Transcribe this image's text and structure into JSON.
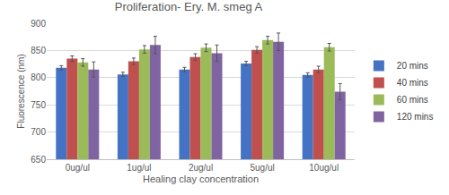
{
  "chart_data": {
    "type": "bar",
    "title": "Proliferation- Ery. M. smeg A",
    "x_label": "Healing clay concentration",
    "y_label": "Fluorescence (nm)",
    "categories": [
      "0ug/ul",
      "1ug/ul",
      "2ug/ul",
      "5ug/ul",
      "10ug/ul"
    ],
    "series": [
      {
        "name": "20 mins",
        "color": "#4472c4",
        "values": [
          818,
          806,
          815,
          826,
          805
        ],
        "errors": [
          4,
          4,
          4,
          4,
          4
        ]
      },
      {
        "name": "40 mins",
        "color": "#c0504d",
        "values": [
          835,
          830,
          838,
          851,
          815
        ],
        "errors": [
          5,
          6,
          6,
          6,
          6
        ]
      },
      {
        "name": "60 mins",
        "color": "#9bbb59",
        "values": [
          828,
          852,
          855,
          869,
          856
        ],
        "errors": [
          7,
          7,
          7,
          7,
          7
        ]
      },
      {
        "name": "120 mins",
        "color": "#8064a2",
        "values": [
          815,
          860,
          845,
          866,
          774
        ],
        "errors": [
          14,
          16,
          15,
          16,
          15
        ]
      }
    ],
    "ylim": [
      650,
      900
    ],
    "yticks": [
      650,
      700,
      750,
      800,
      850,
      900
    ],
    "grid": true,
    "legend": "right"
  }
}
